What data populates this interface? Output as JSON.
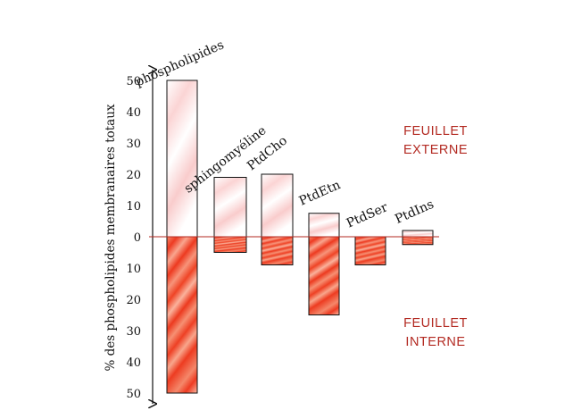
{
  "chart_data": {
    "type": "bar",
    "ylabel": "% des phospholipides membranaires totaux",
    "yticks_top": [
      "50",
      "40",
      "30",
      "20",
      "10"
    ],
    "ytick_zero": "0",
    "yticks_bottom": [
      "10",
      "20",
      "30",
      "40",
      "50"
    ],
    "ylim": [
      -50,
      50
    ],
    "categories": [
      "phospholipides",
      "sphingomyéline",
      "PtdCho",
      "PtdEtn",
      "PtdSer",
      "PtdIns"
    ],
    "series": [
      {
        "name": "FEUILLET EXTERNE",
        "values": [
          50,
          19,
          20,
          7.5,
          0,
          2
        ]
      },
      {
        "name": "FEUILLET INTERNE",
        "values": [
          -50,
          -5,
          -9,
          -25,
          -9,
          -2.5
        ]
      }
    ],
    "colors": {
      "outer": "#fde3e3",
      "inner": "#f0563a",
      "border": "#111111",
      "zero_line": "#b32a22",
      "annotation": "#b32a22"
    },
    "annotations": {
      "outer": [
        "FEUILLET",
        "EXTERNE"
      ],
      "inner": [
        "FEUILLET",
        "INTERNE"
      ]
    },
    "grid": false,
    "legend": "none"
  }
}
